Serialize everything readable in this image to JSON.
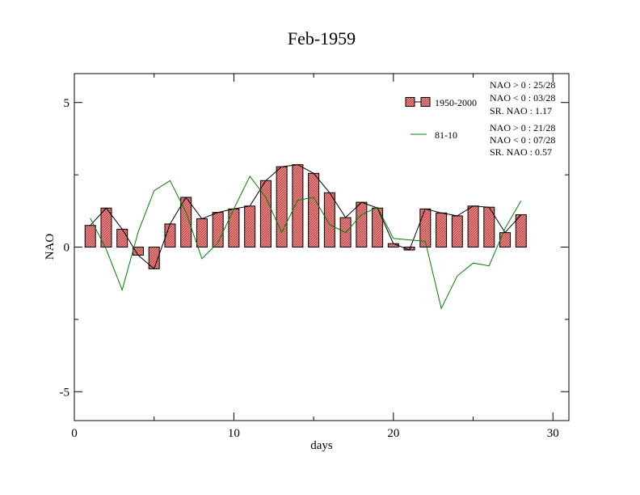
{
  "chart_data": {
    "type": "bar",
    "title": "Feb-1959",
    "xlabel": "days",
    "ylabel": "NAO",
    "xlim": [
      0,
      31
    ],
    "ylim": [
      -6,
      6
    ],
    "xticks": [
      0,
      10,
      20,
      30
    ],
    "yticks": [
      -5,
      0,
      5
    ],
    "x": [
      1,
      2,
      3,
      4,
      5,
      6,
      7,
      8,
      9,
      10,
      11,
      12,
      13,
      14,
      15,
      16,
      17,
      18,
      19,
      20,
      21,
      22,
      23,
      24,
      25,
      26,
      27,
      28
    ],
    "series": [
      {
        "name": "1950-2000",
        "kind": "bar-with-line",
        "color": "#f08080",
        "values": [
          0.75,
          1.35,
          0.62,
          -0.28,
          -0.75,
          0.8,
          1.72,
          0.98,
          1.2,
          1.32,
          1.42,
          2.3,
          2.78,
          2.85,
          2.55,
          1.88,
          1.02,
          1.55,
          1.35,
          0.12,
          -0.1,
          1.32,
          1.18,
          1.08,
          1.42,
          1.38,
          0.5,
          1.12
        ]
      },
      {
        "name": "81-10",
        "kind": "line",
        "color": "#008000",
        "values": [
          1.0,
          -0.08,
          -1.48,
          0.52,
          1.95,
          2.3,
          1.2,
          -0.4,
          0.15,
          1.32,
          2.45,
          1.72,
          0.5,
          1.62,
          1.72,
          0.78,
          0.5,
          1.12,
          1.38,
          0.3,
          0.25,
          0.2,
          -2.12,
          -1.0,
          -0.55,
          -0.65,
          0.65,
          1.6
        ]
      }
    ],
    "legend_position": "top-right",
    "stats": [
      [
        "NAO > 0 : 25/28",
        "NAO < 0 : 03/28",
        "SR. NAO :  1.17"
      ],
      [
        "NAO > 0 : 21/28",
        "NAO < 0 : 07/28",
        "SR. NAO :  0.57"
      ]
    ]
  }
}
